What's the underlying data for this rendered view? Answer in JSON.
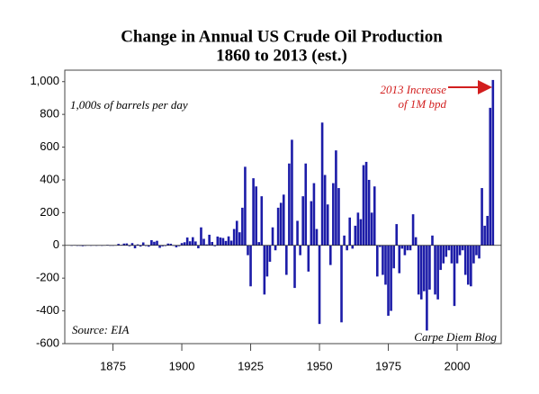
{
  "chart_data": {
    "type": "bar",
    "title": "Change in Annual US Crude Oil Production",
    "subtitle": "1860 to 2013 (est.)",
    "annotations": [
      "1,000s of barrels per day",
      "2013 Increase",
      "of 1M bpd",
      "Source: EIA",
      "Carpe Diem Blog"
    ],
    "color": "#1c1ca8",
    "x": [
      1860,
      1861,
      1862,
      1863,
      1864,
      1865,
      1866,
      1867,
      1868,
      1869,
      1870,
      1871,
      1872,
      1873,
      1874,
      1875,
      1876,
      1877,
      1878,
      1879,
      1880,
      1881,
      1882,
      1883,
      1884,
      1885,
      1886,
      1887,
      1888,
      1889,
      1890,
      1891,
      1892,
      1893,
      1894,
      1895,
      1896,
      1897,
      1898,
      1899,
      1900,
      1901,
      1902,
      1903,
      1904,
      1905,
      1906,
      1907,
      1908,
      1909,
      1910,
      1911,
      1912,
      1913,
      1914,
      1915,
      1916,
      1917,
      1918,
      1919,
      1920,
      1921,
      1922,
      1923,
      1924,
      1925,
      1926,
      1927,
      1928,
      1929,
      1930,
      1931,
      1932,
      1933,
      1934,
      1935,
      1936,
      1937,
      1938,
      1939,
      1940,
      1941,
      1942,
      1943,
      1944,
      1945,
      1946,
      1947,
      1948,
      1949,
      1950,
      1951,
      1952,
      1953,
      1954,
      1955,
      1956,
      1957,
      1958,
      1959,
      1960,
      1961,
      1962,
      1963,
      1964,
      1965,
      1966,
      1967,
      1968,
      1969,
      1970,
      1971,
      1972,
      1973,
      1974,
      1975,
      1976,
      1977,
      1978,
      1979,
      1980,
      1981,
      1982,
      1983,
      1984,
      1985,
      1986,
      1987,
      1988,
      1989,
      1990,
      1991,
      1992,
      1993,
      1994,
      1995,
      1996,
      1997,
      1998,
      1999,
      2000,
      2001,
      2002,
      2003,
      2004,
      2005,
      2006,
      2007,
      2008,
      2009,
      2010,
      2011,
      2012,
      2013
    ],
    "values": [
      0,
      2,
      -3,
      -2,
      -5,
      0,
      1,
      -2,
      1,
      0,
      1,
      -1,
      1,
      3,
      -1,
      -2,
      1,
      9,
      3,
      11,
      12,
      -5,
      14,
      -18,
      6,
      -7,
      18,
      -4,
      -8,
      32,
      22,
      28,
      -15,
      -6,
      -4,
      11,
      10,
      -2,
      -12,
      -5,
      14,
      19,
      48,
      25,
      50,
      24,
      -18,
      110,
      40,
      6,
      65,
      21,
      -5,
      54,
      48,
      45,
      27,
      55,
      29,
      100,
      150,
      80,
      230,
      480,
      -60,
      -250,
      410,
      360,
      20,
      300,
      -300,
      -190,
      -100,
      110,
      -30,
      230,
      260,
      310,
      -180,
      500,
      645,
      -260,
      150,
      -60,
      300,
      500,
      -160,
      270,
      380,
      100,
      -480,
      750,
      430,
      250,
      -120,
      380,
      580,
      350,
      -470,
      60,
      -30,
      170,
      -20,
      120,
      200,
      160,
      490,
      510,
      400,
      200,
      360,
      -190,
      -10,
      -180,
      -240,
      -430,
      -400,
      -140,
      130,
      -170,
      -20,
      -60,
      -30,
      -30,
      190,
      50,
      -300,
      -330,
      -280,
      -520,
      -270,
      60,
      -300,
      -330,
      -150,
      -110,
      -70,
      -30,
      -110,
      -370,
      -110,
      -60,
      -30,
      -180,
      -240,
      -250,
      -110,
      -60,
      -80,
      350,
      120,
      180,
      840,
      1010
    ],
    "xlim": [
      1857.5,
      2016
    ],
    "xticks": [
      1875,
      1900,
      1925,
      1950,
      1975,
      2000
    ],
    "ylim": [
      -600,
      1070
    ],
    "yticks": [
      -600,
      -400,
      -200,
      0,
      200,
      400,
      600,
      800,
      {
        "value": 1000,
        "label": "1,000"
      }
    ]
  }
}
